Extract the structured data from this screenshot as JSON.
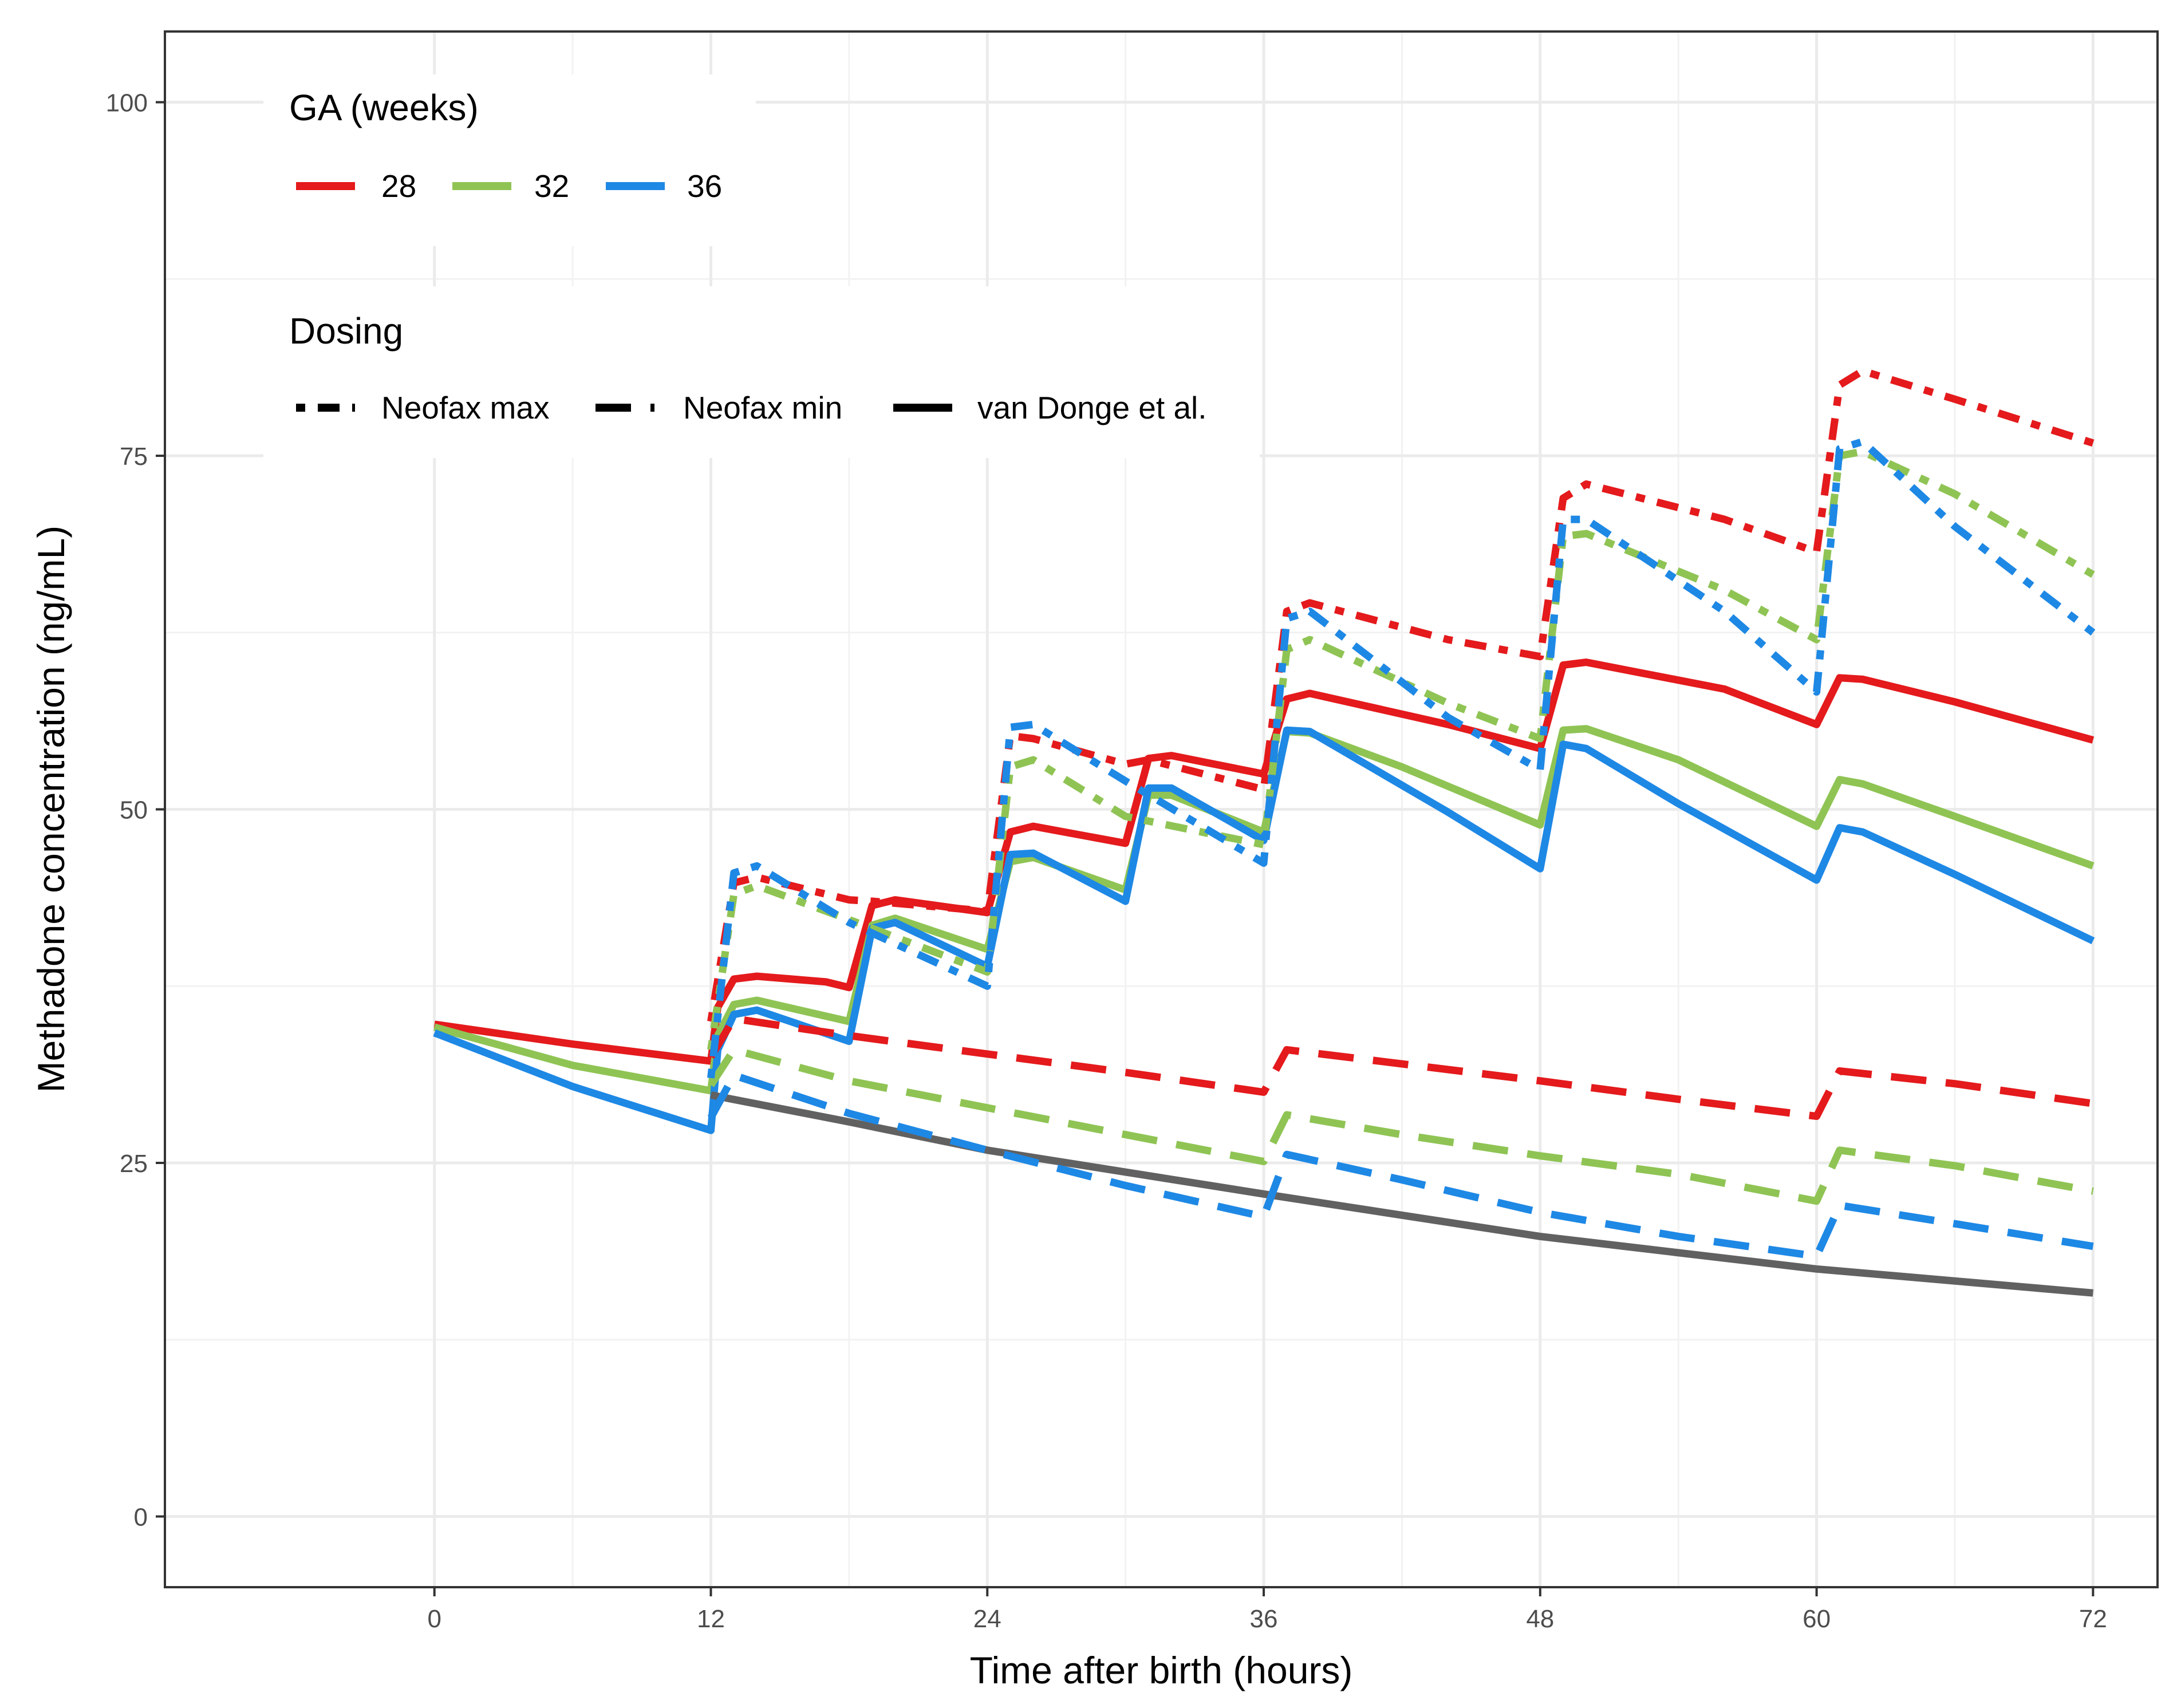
{
  "chart_data": {
    "type": "line",
    "title": "",
    "xlabel": "Time after birth (hours)",
    "ylabel": "Methadone concentration (ng/mL)",
    "xlim": [
      -11.7,
      74.8
    ],
    "ylim": [
      -5,
      105
    ],
    "xticks": [
      0,
      12,
      24,
      36,
      48,
      60,
      72
    ],
    "yticks": [
      0,
      25,
      50,
      75,
      100
    ],
    "xtick_labels": [
      "0",
      "12",
      "24",
      "36",
      "48",
      "60",
      "72"
    ],
    "ytick_labels": [
      "0",
      "25",
      "50",
      "75",
      "100"
    ],
    "grid": true,
    "legend": {
      "position": "top-left",
      "ga_title": "GA (weeks)",
      "ga_entries": [
        {
          "label": "28",
          "color": "#e41a1c"
        },
        {
          "label": "32",
          "color": "#8fc454"
        },
        {
          "label": "36",
          "color": "#1e88e5"
        }
      ],
      "dosing_title": "Dosing",
      "dosing_entries": [
        {
          "label": "Neofax max",
          "dash": "dotdash"
        },
        {
          "label": "Neofax min",
          "dash": "dashed"
        },
        {
          "label": "van Donge et al.",
          "dash": "solid"
        }
      ]
    },
    "colors": {
      "28": "#e41a1c",
      "32": "#8fc454",
      "36": "#1e88e5",
      "ref": "#616161"
    },
    "series": [
      {
        "name": "28 van Donge et al.",
        "ga": "28",
        "dosing": "van Donge et al.",
        "color": "#e41a1c",
        "dash": "solid",
        "points": [
          [
            0,
            34.8
          ],
          [
            6,
            33.4
          ],
          [
            12,
            32.2
          ],
          [
            12.3,
            36
          ],
          [
            13,
            38
          ],
          [
            14,
            38.2
          ],
          [
            17,
            37.8
          ],
          [
            18,
            37.4
          ],
          [
            19,
            43.2
          ],
          [
            20,
            43.6
          ],
          [
            24,
            42.7
          ],
          [
            25,
            48.4
          ],
          [
            26,
            48.8
          ],
          [
            30,
            47.6
          ],
          [
            31,
            53.6
          ],
          [
            32,
            53.8
          ],
          [
            36,
            52.5
          ],
          [
            37,
            57.8
          ],
          [
            38,
            58.2
          ],
          [
            44,
            56
          ],
          [
            48,
            54.3
          ],
          [
            49,
            60.2
          ],
          [
            50,
            60.4
          ],
          [
            56,
            58.5
          ],
          [
            60,
            56
          ],
          [
            61,
            59.3
          ],
          [
            62,
            59.2
          ],
          [
            66,
            57.6
          ],
          [
            72,
            54.9
          ]
        ]
      },
      {
        "name": "32 van Donge et al.",
        "ga": "32",
        "dosing": "van Donge et al.",
        "color": "#8fc454",
        "dash": "solid",
        "points": [
          [
            0,
            34.6
          ],
          [
            6,
            31.9
          ],
          [
            12,
            30.1
          ],
          [
            12.3,
            34
          ],
          [
            13,
            36.2
          ],
          [
            14,
            36.5
          ],
          [
            18,
            35
          ],
          [
            19,
            41.8
          ],
          [
            20,
            42.3
          ],
          [
            24,
            40.1
          ],
          [
            25,
            46.3
          ],
          [
            26,
            46.6
          ],
          [
            30,
            44.3
          ],
          [
            31,
            51
          ],
          [
            32,
            51
          ],
          [
            36,
            48.4
          ],
          [
            37,
            55.5
          ],
          [
            38,
            55.4
          ],
          [
            42,
            53
          ],
          [
            48,
            48.9
          ],
          [
            49,
            55.6
          ],
          [
            50,
            55.7
          ],
          [
            54,
            53.5
          ],
          [
            60,
            48.8
          ],
          [
            61,
            52.1
          ],
          [
            62,
            51.8
          ],
          [
            66,
            49.5
          ],
          [
            72,
            46
          ]
        ]
      },
      {
        "name": "36 van Donge et al.",
        "ga": "36",
        "dosing": "van Donge et al.",
        "color": "#1e88e5",
        "dash": "solid",
        "points": [
          [
            0,
            34.2
          ],
          [
            6,
            30.4
          ],
          [
            12,
            27.3
          ],
          [
            12.3,
            33
          ],
          [
            13,
            35.5
          ],
          [
            14,
            35.8
          ],
          [
            18,
            33.6
          ],
          [
            19,
            41.6
          ],
          [
            20,
            42
          ],
          [
            24,
            38.9
          ],
          [
            25,
            46.8
          ],
          [
            26,
            46.9
          ],
          [
            30,
            43.5
          ],
          [
            31,
            51.5
          ],
          [
            32,
            51.5
          ],
          [
            36,
            47.8
          ],
          [
            37,
            55.6
          ],
          [
            38,
            55.5
          ],
          [
            44,
            49.8
          ],
          [
            48,
            45.8
          ],
          [
            49,
            54.6
          ],
          [
            50,
            54.3
          ],
          [
            54,
            50.4
          ],
          [
            60,
            45
          ],
          [
            61,
            48.7
          ],
          [
            62,
            48.4
          ],
          [
            66,
            45.4
          ],
          [
            72,
            40.7
          ]
        ]
      },
      {
        "name": "Reference van Donge et al.",
        "ga": "ref",
        "dosing": "van Donge et al.",
        "color": "#616161",
        "dash": "solid",
        "points": [
          [
            12,
            29.8
          ],
          [
            18,
            27.9
          ],
          [
            24,
            25.9
          ],
          [
            36,
            22.8
          ],
          [
            48,
            19.8
          ],
          [
            60,
            17.5
          ],
          [
            72,
            15.8
          ]
        ]
      },
      {
        "name": "28 Neofax min",
        "ga": "28",
        "dosing": "Neofax min",
        "color": "#e41a1c",
        "dash": "dashed",
        "points": [
          [
            12,
            32.5
          ],
          [
            13,
            35.2
          ],
          [
            18,
            34
          ],
          [
            24,
            32.7
          ],
          [
            30,
            31.4
          ],
          [
            36,
            30
          ],
          [
            37,
            33
          ],
          [
            42,
            32
          ],
          [
            48,
            30.8
          ],
          [
            54,
            29.5
          ],
          [
            60,
            28.3
          ],
          [
            61,
            31.5
          ],
          [
            66,
            30.6
          ],
          [
            72,
            29.2
          ]
        ]
      },
      {
        "name": "32 Neofax min",
        "ga": "32",
        "dosing": "Neofax min",
        "color": "#8fc454",
        "dash": "dashed",
        "points": [
          [
            12,
            30.5
          ],
          [
            13,
            33
          ],
          [
            18,
            30.8
          ],
          [
            24,
            28.9
          ],
          [
            30,
            27
          ],
          [
            36,
            25.1
          ],
          [
            37,
            28.4
          ],
          [
            42,
            27
          ],
          [
            48,
            25.5
          ],
          [
            54,
            24.2
          ],
          [
            60,
            22.3
          ],
          [
            61,
            25.9
          ],
          [
            66,
            24.8
          ],
          [
            72,
            23
          ]
        ]
      },
      {
        "name": "36 Neofax min",
        "ga": "36",
        "dosing": "Neofax min",
        "color": "#1e88e5",
        "dash": "dashed",
        "points": [
          [
            12,
            28.2
          ],
          [
            13,
            31.2
          ],
          [
            18,
            28.5
          ],
          [
            24,
            25.9
          ],
          [
            30,
            23.4
          ],
          [
            36,
            21.2
          ],
          [
            37,
            25.6
          ],
          [
            42,
            23.8
          ],
          [
            48,
            21.5
          ],
          [
            54,
            19.8
          ],
          [
            60,
            18.4
          ],
          [
            61,
            22
          ],
          [
            66,
            20.7
          ],
          [
            72,
            19.1
          ]
        ]
      },
      {
        "name": "28 Neofax max",
        "ga": "28",
        "dosing": "Neofax max",
        "color": "#e41a1c",
        "dash": "dotdash",
        "points": [
          [
            12,
            35
          ],
          [
            13,
            44.8
          ],
          [
            14,
            45.2
          ],
          [
            18,
            43.6
          ],
          [
            19,
            43.5
          ],
          [
            24,
            42.8
          ],
          [
            25,
            55.2
          ],
          [
            26,
            55
          ],
          [
            30,
            53.2
          ],
          [
            31,
            53.5
          ],
          [
            36,
            51.4
          ],
          [
            37,
            64
          ],
          [
            38,
            64.6
          ],
          [
            44,
            62
          ],
          [
            48,
            60.8
          ],
          [
            49,
            72
          ],
          [
            50,
            73
          ],
          [
            56,
            70.5
          ],
          [
            60,
            68.2
          ],
          [
            61,
            80
          ],
          [
            62,
            81
          ],
          [
            66,
            79
          ],
          [
            72,
            75.9
          ]
        ]
      },
      {
        "name": "32 Neofax max",
        "ga": "32",
        "dosing": "Neofax max",
        "color": "#8fc454",
        "dash": "dotdash",
        "points": [
          [
            12,
            33
          ],
          [
            13,
            44
          ],
          [
            14,
            44.6
          ],
          [
            18,
            42.2
          ],
          [
            24,
            38.5
          ],
          [
            25,
            53
          ],
          [
            26,
            53.5
          ],
          [
            30,
            49.5
          ],
          [
            36,
            47.5
          ],
          [
            37,
            61.3
          ],
          [
            38,
            62
          ],
          [
            44,
            57.5
          ],
          [
            48,
            55
          ],
          [
            49,
            69.3
          ],
          [
            50,
            69.5
          ],
          [
            56,
            65.5
          ],
          [
            60,
            62
          ],
          [
            61,
            75
          ],
          [
            62,
            75.3
          ],
          [
            66,
            72.3
          ],
          [
            72,
            66.6
          ]
        ]
      },
      {
        "name": "36 Neofax max",
        "ga": "36",
        "dosing": "Neofax max",
        "color": "#1e88e5",
        "dash": "dotdash",
        "points": [
          [
            12,
            31
          ],
          [
            13,
            45.5
          ],
          [
            14,
            46
          ],
          [
            18,
            42
          ],
          [
            24,
            37.5
          ],
          [
            25,
            55.8
          ],
          [
            26,
            56
          ],
          [
            30,
            52
          ],
          [
            36,
            46.2
          ],
          [
            37,
            63.5
          ],
          [
            38,
            64
          ],
          [
            44,
            56.5
          ],
          [
            48,
            52.8
          ],
          [
            49,
            70.5
          ],
          [
            50,
            70.5
          ],
          [
            56,
            64
          ],
          [
            60,
            58.3
          ],
          [
            61,
            75.5
          ],
          [
            62,
            76
          ],
          [
            66,
            70
          ],
          [
            72,
            62.5
          ]
        ]
      }
    ]
  }
}
